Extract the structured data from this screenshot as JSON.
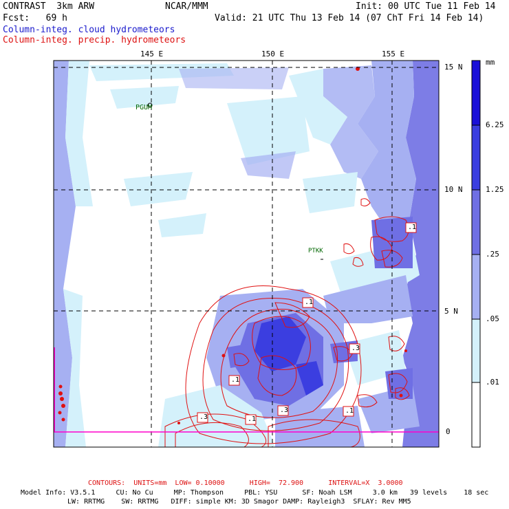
{
  "header": {
    "line1_left": "CONTRAST  3km ARW",
    "line1_mid": "NCAR/MMM",
    "line1_right": "Init: 00 UTC Tue 11 Feb 14",
    "line2_left": "Fcst:   69 h",
    "line2_right": "Valid: 21 UTC Thu 13 Feb 14 (07 ChT Fri 14 Feb 14)",
    "field1": "Column-integ. cloud hydrometeors",
    "field2": "Column-integ. precip. hydrometeors"
  },
  "map": {
    "lon_labels": [
      "145 E",
      "150 E",
      "155 E"
    ],
    "lat_labels": [
      "15 N",
      "10 N",
      "5 N",
      "0"
    ],
    "stations": [
      "PGUM",
      "PTKK"
    ],
    "contour_labels": [
      ".1",
      ".1",
      ".3",
      ".1",
      ".3",
      ".3",
      ".1",
      ".1"
    ]
  },
  "colorbar": {
    "unit": "mm",
    "labels": [
      "6.25",
      "1.25",
      ".25",
      ".05",
      ".01"
    ],
    "colors": [
      "#1a10d8",
      "#3b3ee0",
      "#6f6fe4",
      "#a6b0f2",
      "#d4f1fb",
      "#ffffff"
    ]
  },
  "footer": {
    "contours": "CONTOURS:  UNITS=mm  LOW= 0.10000      HIGH=  72.900      INTERVAL=X  3.0000",
    "model_line1": "Model Info: V3.5.1     CU: No Cu     MP: Thompson     PBL: YSU      SF: Noah LSM     3.0 km   39 levels    18 sec",
    "model_line2": "LW: RRTMG    SW: RRTMG   DIFF: simple KM: 3D Smagor DAMP: Rayleigh3  SFLAY: Rev MM5"
  }
}
